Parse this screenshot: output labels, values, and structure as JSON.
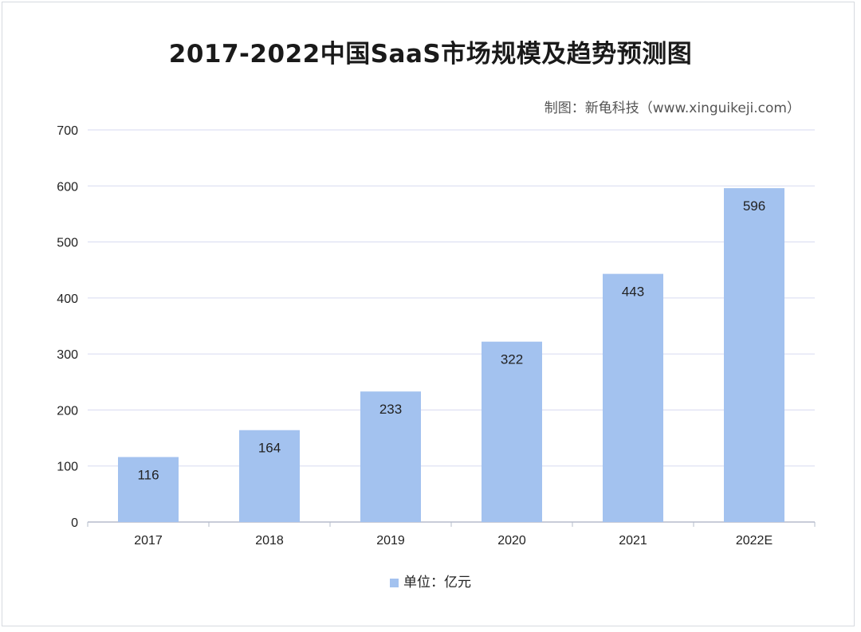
{
  "title": "2017-2022中国SaaS市场规模及趋势预测图",
  "credit": "制图：新龟科技（www.xinguikeji.com）",
  "legend_label": "单位：亿元",
  "colors": {
    "bar": "#a3c2ef",
    "grid": "#d7daf0",
    "axis": "#b5bccb"
  },
  "chart_data": {
    "type": "bar",
    "title": "2017-2022中国SaaS市场规模及趋势预测图",
    "categories": [
      "2017",
      "2018",
      "2019",
      "2020",
      "2021",
      "2022E"
    ],
    "series": [
      {
        "name": "单位：亿元",
        "values": [
          116,
          164,
          233,
          322,
          443,
          596
        ]
      }
    ],
    "ylim": [
      0,
      700
    ],
    "yticks": [
      0,
      100,
      200,
      300,
      400,
      500,
      600,
      700
    ],
    "grid": true,
    "legend": "bottom",
    "data_labels": true
  }
}
